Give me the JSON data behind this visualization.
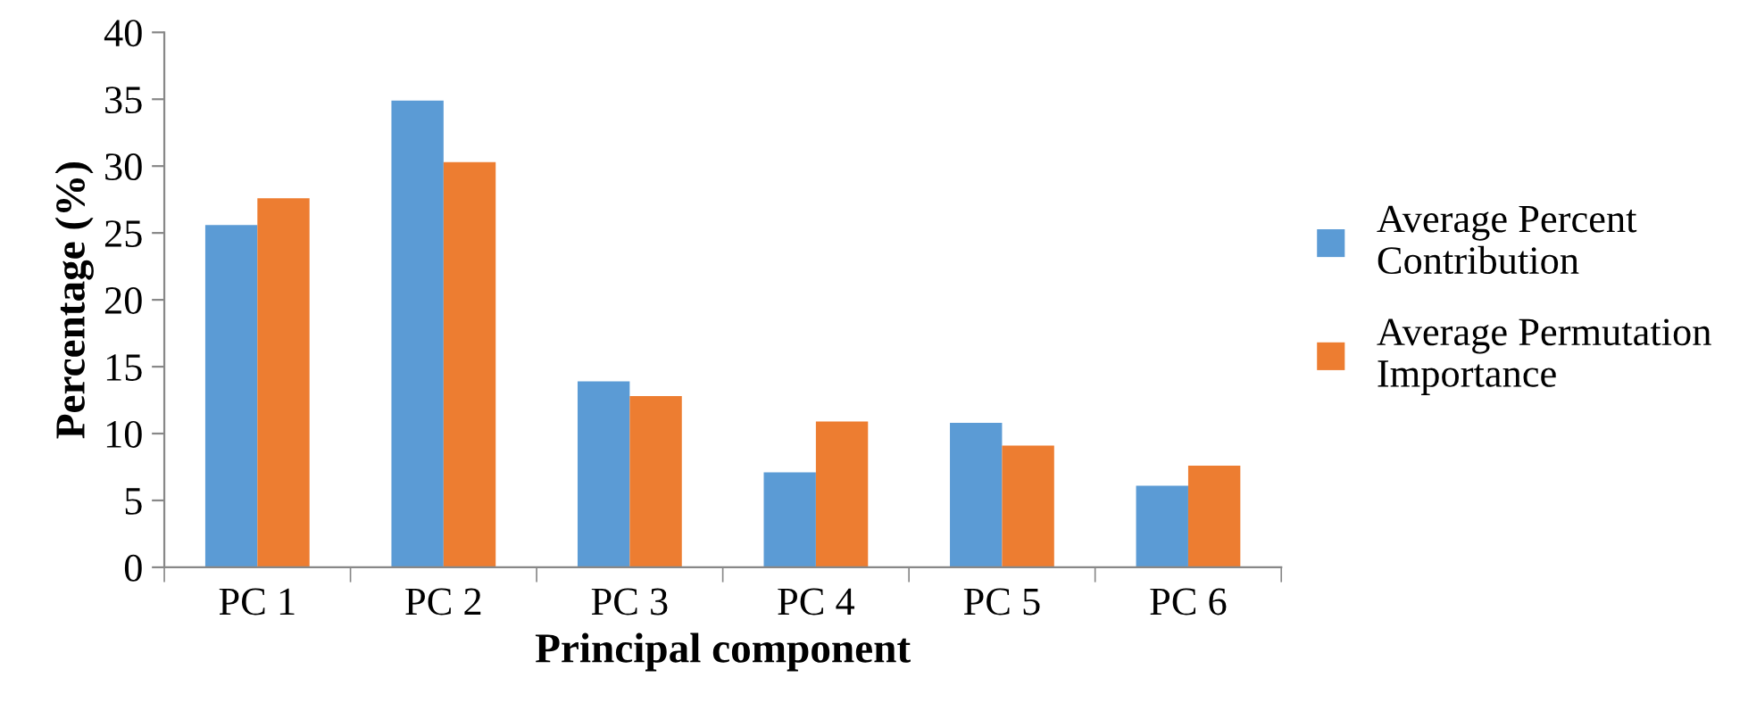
{
  "chart_data": {
    "type": "bar",
    "xlabel": "Principal component",
    "ylabel": "Percentage (%)",
    "categories": [
      "PC 1",
      "PC 2",
      "PC 3",
      "PC 4",
      "PC 5",
      "PC 6"
    ],
    "series": [
      {
        "name": "Average Percent\nContribution",
        "color": "#5b9bd5",
        "values": [
          25.6,
          34.9,
          13.9,
          7.1,
          10.8,
          6.1
        ]
      },
      {
        "name": "Average Permutation\nImportance",
        "color": "#ed7d31",
        "values": [
          27.6,
          30.3,
          12.8,
          10.9,
          9.1,
          7.6
        ]
      }
    ],
    "ylim": [
      0,
      40
    ],
    "yticks": [
      0,
      5,
      10,
      15,
      20,
      25,
      30,
      35,
      40
    ],
    "grid": false,
    "legend": "right"
  }
}
